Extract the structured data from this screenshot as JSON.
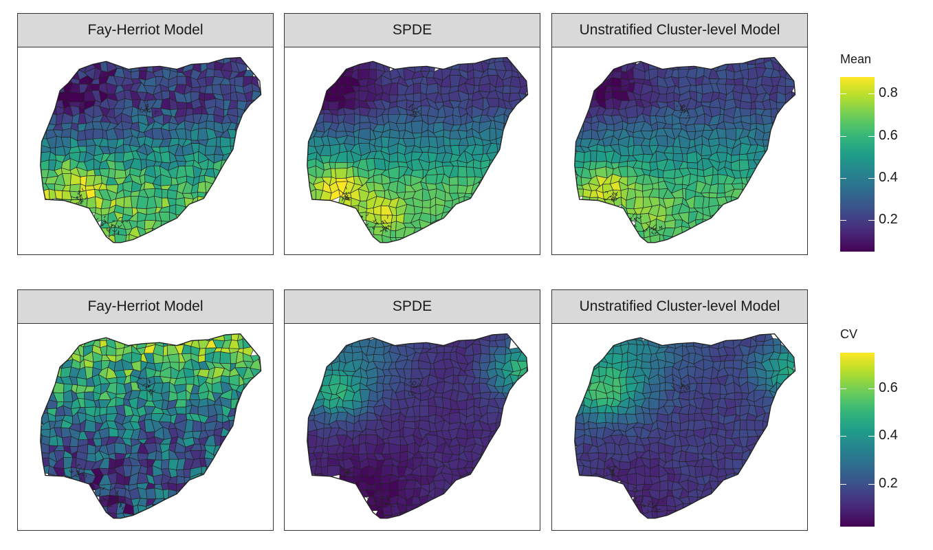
{
  "panels": [
    {
      "title": "Fay-Herriot Model",
      "metric": "mean",
      "profile": "fh_mean"
    },
    {
      "title": "SPDE",
      "metric": "mean",
      "profile": "spde_mean"
    },
    {
      "title": "Unstratified Cluster-level Model",
      "metric": "mean",
      "profile": "ucl_mean"
    },
    {
      "title": "Fay-Herriot Model",
      "metric": "cv",
      "profile": "fh_cv"
    },
    {
      "title": "SPDE",
      "metric": "cv",
      "profile": "spde_cv"
    },
    {
      "title": "Unstratified Cluster-level Model",
      "metric": "cv",
      "profile": "ucl_cv"
    }
  ],
  "legends": {
    "mean": {
      "title": "Mean",
      "range": [
        0.05,
        0.88
      ],
      "ticks": [
        "0.2",
        "0.4",
        "0.6",
        "0.8"
      ],
      "tick_values": [
        0.2,
        0.4,
        0.6,
        0.8
      ]
    },
    "cv": {
      "title": "CV",
      "range": [
        0.02,
        0.75
      ],
      "ticks": [
        "0.2",
        "0.4",
        "0.6"
      ],
      "tick_values": [
        0.2,
        0.4,
        0.6
      ]
    }
  },
  "colormap": "viridis",
  "colors": {
    "low": "#440154",
    "mid": "#21908c",
    "high": "#fde725",
    "border": "#222222"
  }
}
